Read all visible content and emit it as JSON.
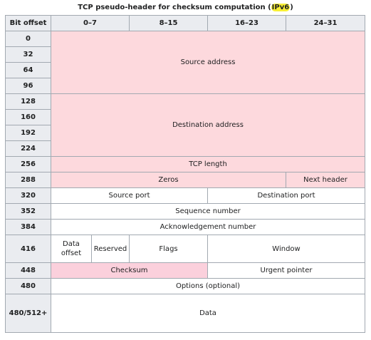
{
  "caption": {
    "before": "TCP pseudo-header for checksum computation (",
    "highlight": "IPv6",
    "after": ")"
  },
  "headers": {
    "bit_offset": "Bit offset",
    "b0_7": "0–7",
    "b8_15": "8–15",
    "b16_23": "16–23",
    "b24_31": "24–31"
  },
  "offsets": [
    "0",
    "32",
    "64",
    "96",
    "128",
    "160",
    "192",
    "224",
    "256",
    "288",
    "320",
    "352",
    "384",
    "416",
    "448",
    "480",
    "480/512+"
  ],
  "fields": {
    "source_address": "Source address",
    "destination_address": "Destination address",
    "tcp_length": "TCP length",
    "zeros": "Zeros",
    "next_header": "Next header",
    "source_port": "Source port",
    "destination_port": "Destination port",
    "sequence_number": "Sequence number",
    "acknowledgement_number": "Acknowledgement number",
    "data_offset": "Data offset",
    "reserved": "Reserved",
    "flags": "Flags",
    "window": "Window",
    "checksum": "Checksum",
    "urgent_pointer": "Urgent pointer",
    "options": "Options (optional)",
    "data": "Data"
  },
  "colors": {
    "header_bg": "#eaecf0",
    "pseudo_header_bg": "#fdd9dd",
    "checksum_bg": "#fbd0dc",
    "border": "#a2a9b1",
    "highlight": "#f7ef35"
  }
}
